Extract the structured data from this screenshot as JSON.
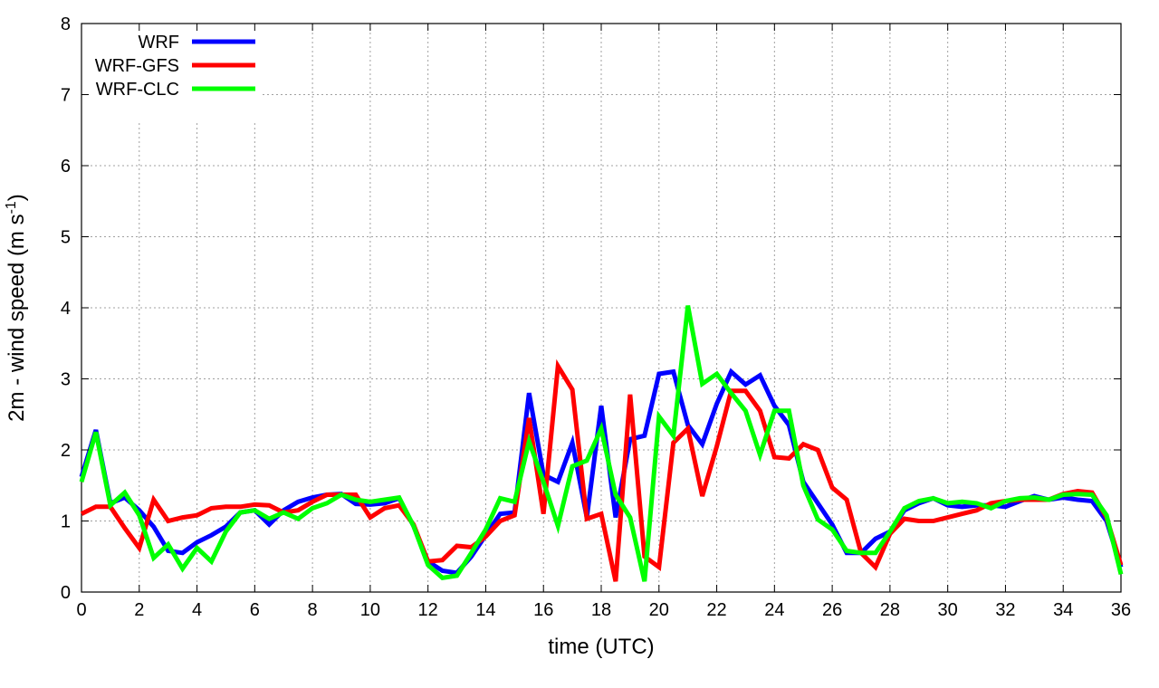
{
  "chart_data": {
    "type": "line",
    "title": "",
    "xlabel": "time (UTC)",
    "ylabel_main": "2m - wind speed  (m s",
    "ylabel_sup": "-1",
    "ylabel_close": ")",
    "xlim": [
      0,
      36
    ],
    "ylim": [
      0,
      8
    ],
    "xticks": [
      0,
      2,
      4,
      6,
      8,
      10,
      12,
      14,
      16,
      18,
      20,
      22,
      24,
      26,
      28,
      30,
      32,
      34,
      36
    ],
    "yticks": [
      0,
      1,
      2,
      3,
      4,
      5,
      6,
      7,
      8
    ],
    "grid": true,
    "legend_position": "top-left",
    "x": [
      0,
      0.5,
      1,
      1.5,
      2,
      2.5,
      3,
      3.5,
      4,
      4.5,
      5,
      5.5,
      6,
      6.5,
      7,
      7.5,
      8,
      8.5,
      9,
      9.5,
      10,
      10.5,
      11,
      11.5,
      12,
      12.5,
      13,
      13.5,
      14,
      14.5,
      15,
      15.5,
      16,
      16.5,
      17,
      17.5,
      18,
      18.5,
      19,
      19.5,
      20,
      20.5,
      21,
      21.5,
      22,
      22.5,
      23,
      23.5,
      24,
      24.5,
      25,
      25.5,
      26,
      26.5,
      27,
      27.5,
      28,
      28.5,
      29,
      29.5,
      30,
      30.5,
      31,
      31.5,
      32,
      32.5,
      33,
      33.5,
      34,
      34.5,
      35,
      35.5,
      36
    ],
    "series": [
      {
        "name": "WRF",
        "color": "#0000ff",
        "values": [
          1.62,
          2.28,
          1.25,
          1.33,
          1.15,
          0.92,
          0.58,
          0.55,
          0.7,
          0.8,
          0.92,
          1.12,
          1.15,
          0.95,
          1.15,
          1.27,
          1.33,
          1.37,
          1.38,
          1.24,
          1.23,
          1.25,
          1.32,
          0.93,
          0.43,
          0.3,
          0.27,
          0.5,
          0.8,
          1.1,
          1.12,
          2.8,
          1.65,
          1.55,
          2.1,
          1.05,
          2.62,
          1.05,
          2.15,
          2.2,
          3.07,
          3.1,
          2.35,
          2.08,
          2.65,
          3.1,
          2.92,
          3.05,
          2.62,
          2.35,
          1.55,
          1.25,
          0.95,
          0.55,
          0.55,
          0.75,
          0.85,
          1.15,
          1.25,
          1.32,
          1.22,
          1.2,
          1.22,
          1.22,
          1.2,
          1.28,
          1.35,
          1.3,
          1.33,
          1.3,
          1.28,
          1.0,
          0.35
        ]
      },
      {
        "name": "WRF-GFS",
        "color": "#ff0000",
        "values": [
          1.1,
          1.2,
          1.2,
          0.9,
          0.62,
          1.3,
          1.0,
          1.05,
          1.08,
          1.18,
          1.2,
          1.2,
          1.23,
          1.22,
          1.12,
          1.15,
          1.27,
          1.37,
          1.37,
          1.37,
          1.05,
          1.18,
          1.22,
          0.95,
          0.43,
          0.45,
          0.65,
          0.63,
          0.78,
          1.0,
          1.08,
          2.45,
          1.1,
          3.18,
          2.85,
          1.03,
          1.1,
          0.15,
          2.78,
          0.5,
          0.35,
          2.1,
          2.3,
          1.35,
          2.05,
          2.83,
          2.83,
          2.55,
          1.9,
          1.88,
          2.08,
          2.0,
          1.47,
          1.3,
          0.55,
          0.35,
          0.82,
          1.03,
          1.0,
          1.0,
          1.05,
          1.1,
          1.15,
          1.25,
          1.28,
          1.3,
          1.3,
          1.3,
          1.38,
          1.42,
          1.4,
          1.05,
          0.38
        ]
      },
      {
        "name": "WRF-CLC",
        "color": "#00ff00",
        "values": [
          1.55,
          2.25,
          1.22,
          1.4,
          1.08,
          0.48,
          0.67,
          0.33,
          0.62,
          0.43,
          0.85,
          1.12,
          1.15,
          1.03,
          1.12,
          1.03,
          1.18,
          1.25,
          1.37,
          1.3,
          1.27,
          1.3,
          1.33,
          0.93,
          0.38,
          0.2,
          0.23,
          0.55,
          0.88,
          1.32,
          1.27,
          2.12,
          1.55,
          0.93,
          1.77,
          1.85,
          2.3,
          1.37,
          1.05,
          0.15,
          2.47,
          2.2,
          4.03,
          2.93,
          3.07,
          2.8,
          2.55,
          1.93,
          2.55,
          2.55,
          1.5,
          1.02,
          0.88,
          0.58,
          0.55,
          0.55,
          0.85,
          1.18,
          1.28,
          1.32,
          1.25,
          1.27,
          1.25,
          1.18,
          1.28,
          1.32,
          1.33,
          1.3,
          1.37,
          1.38,
          1.37,
          1.08,
          0.25
        ]
      }
    ]
  }
}
